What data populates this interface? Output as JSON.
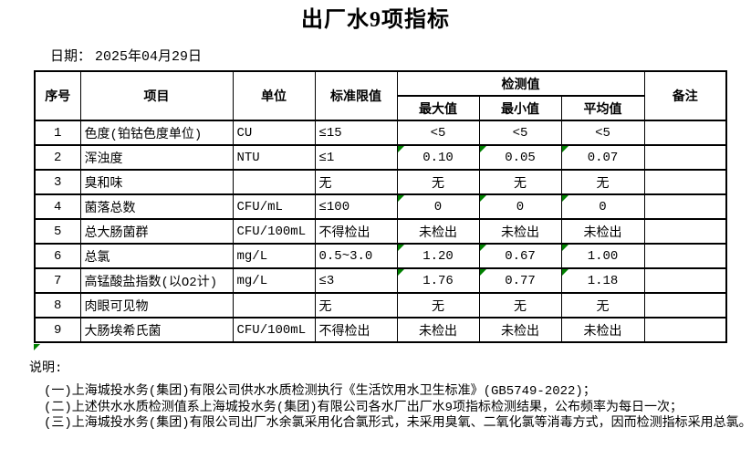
{
  "title": "出厂水9项指标",
  "date": {
    "label": "日期：",
    "value": "2025年04月29日"
  },
  "table": {
    "headers": {
      "seq": "序号",
      "item": "项目",
      "unit": "单位",
      "limit": "标准限值",
      "detection": "检测值",
      "max": "最大值",
      "min": "最小值",
      "avg": "平均值",
      "remark": "备注"
    },
    "rows": [
      {
        "seq": "1",
        "item": "色度(铂钴色度单位)",
        "unit": "CU",
        "limit": "≤15",
        "max": "<5",
        "min": "<5",
        "avg": "<5",
        "remark": "",
        "flagged": false
      },
      {
        "seq": "2",
        "item": "浑浊度",
        "unit": "NTU",
        "limit": "≤1",
        "max": "0.10",
        "min": "0.05",
        "avg": "0.07",
        "remark": "",
        "flagged": true
      },
      {
        "seq": "3",
        "item": "臭和味",
        "unit": "",
        "limit": "无",
        "max": "无",
        "min": "无",
        "avg": "无",
        "remark": "",
        "flagged": false
      },
      {
        "seq": "4",
        "item": "菌落总数",
        "unit": "CFU/mL",
        "limit": "≤100",
        "max": "0",
        "min": "0",
        "avg": "0",
        "remark": "",
        "flagged": true
      },
      {
        "seq": "5",
        "item": "总大肠菌群",
        "unit": "CFU/100mL",
        "limit": "不得检出",
        "max": "未检出",
        "min": "未检出",
        "avg": "未检出",
        "remark": "",
        "flagged": false
      },
      {
        "seq": "6",
        "item": "总氯",
        "unit": "mg/L",
        "limit": "0.5~3.0",
        "max": "1.20",
        "min": "0.67",
        "avg": "1.00",
        "remark": "",
        "flagged": true
      },
      {
        "seq": "7",
        "item": "高锰酸盐指数(以O2计)",
        "unit": "mg/L",
        "limit": "≤3",
        "max": "1.76",
        "min": "0.77",
        "avg": "1.18",
        "remark": "",
        "flagged": true
      },
      {
        "seq": "8",
        "item": "肉眼可见物",
        "unit": "",
        "limit": "无",
        "max": "无",
        "min": "无",
        "avg": "无",
        "remark": "",
        "flagged": false
      },
      {
        "seq": "9",
        "item": "大肠埃希氏菌",
        "unit": "CFU/100mL",
        "limit": "不得检出",
        "max": "未检出",
        "min": "未检出",
        "avg": "未检出",
        "remark": "",
        "flagged": false
      }
    ]
  },
  "notes": {
    "label": "说明:",
    "items": [
      "(一)上海城投水务(集团)有限公司供水水质检测执行《生活饮用水卫生标准》(GB5749-2022)；",
      "(二)上述供水水质检测值系上海城投水务(集团)有限公司各水厂出厂水9项指标检测结果，公布频率为每日一次；",
      "(三)上海城投水务(集团)有限公司出厂水余氯采用化合氯形式，未采用臭氧、二氧化氯等消毒方式，因而检测指标采用总氯。"
    ]
  },
  "colors": {
    "flag_green": "#008000",
    "border": "#000000",
    "background": "#ffffff",
    "text": "#000000"
  }
}
